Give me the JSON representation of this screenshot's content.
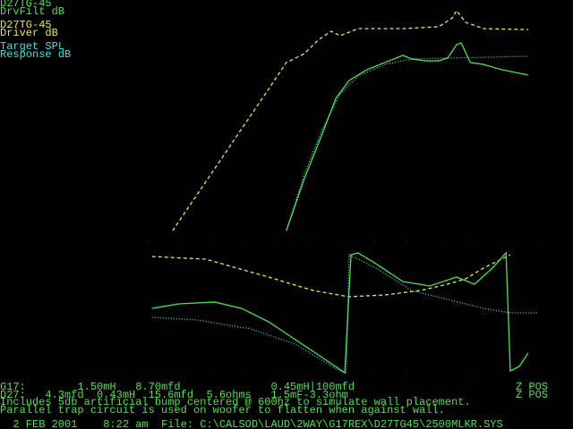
{
  "chart_data": [
    {
      "type": "line",
      "xlim": [
        0,
        100
      ],
      "ylim": [
        0,
        100
      ],
      "series": [
        {
          "name": "DrvFilt dB",
          "driver": "D27TG-45",
          "color": "#50e050",
          "style": "solid",
          "x": [
            35.6,
            40.2,
            44.8,
            48.3,
            51.7,
            56.3,
            60.9,
            65.5,
            67.8,
            71.3,
            74.7,
            77,
            79.3,
            80.5,
            82.8,
            86.2,
            90.8,
            97.7
          ],
          "values": [
            4.5,
            26.4,
            45.3,
            60.4,
            67.9,
            72.5,
            75.5,
            78.5,
            77,
            76.2,
            76.2,
            77.4,
            83,
            83.8,
            75.5,
            74.7,
            72.5,
            70.2
          ]
        },
        {
          "name": "Driver dB",
          "driver": "D27TG-45",
          "color": "#e8e850",
          "style": "dashed",
          "x": [
            6.4,
            31,
            35.6,
            40.2,
            43.7,
            47.1,
            49.4,
            54,
            65.5,
            74.7,
            78.2,
            79.3,
            81.6,
            86.2,
            97.7
          ],
          "values": [
            4.5,
            64.2,
            75.5,
            79.2,
            84.9,
            88.7,
            86.8,
            89.8,
            89.8,
            90.6,
            94.3,
            97.4,
            92.5,
            89.8,
            89.4
          ]
        },
        {
          "name": "Response dB",
          "driver": "Target SPL",
          "color": "#40e0e0",
          "style": "dotted",
          "x": [
            35.6,
            40.2,
            44.8,
            49.4,
            54,
            60.9,
            67.8,
            77,
            97.7
          ],
          "values": [
            4.5,
            28.3,
            47.2,
            62.3,
            69.8,
            74.7,
            77,
            77.4,
            78.1
          ]
        }
      ]
    },
    {
      "type": "line",
      "xlim": [
        0,
        100
      ],
      "ylim": [
        0,
        100
      ],
      "series": [
        {
          "color": "#e8e850",
          "style": "dashed",
          "x": [
            1.1,
            14.9,
            31,
            42.5,
            51.7,
            60.9,
            70.1,
            77,
            81.6,
            86.2,
            90.8,
            93.1
          ],
          "values": [
            97.1,
            94.9,
            80.3,
            69.3,
            64.2,
            65.7,
            69.3,
            74.5,
            78.8,
            87.6,
            94.9,
            98.5
          ]
        },
        {
          "color": "#50e050",
          "style": "solid",
          "x": [
            1.1,
            8,
            17.2,
            24.1,
            31,
            37.9,
            44.8,
            50.6,
            52.2,
            54,
            58.6,
            65.5,
            72.4,
            79.3,
            83.9,
            88.5,
            92,
            93.1,
            95.4,
            97.7
          ],
          "values": [
            54.7,
            58.4,
            59.9,
            54.7,
            43.8,
            29.2,
            14.6,
            2.2,
            98.5,
            100,
            91.2,
            76.6,
            73,
            80.3,
            74.5,
            87.6,
            100,
            3.6,
            7.3,
            18.2
          ]
        },
        {
          "color": "#40e0e0",
          "style": "dotted",
          "x": [
            1.1,
            12.6,
            26.4,
            37.9,
            49.4,
            51,
            51.7,
            58.6,
            67.8,
            77,
            86.2,
            93.1,
            100
          ],
          "values": [
            47.4,
            45.3,
            38,
            25.5,
            3.6,
            1.5,
            98.5,
            87.6,
            69.3,
            62,
            54.7,
            51.1,
            51.1
          ]
        }
      ]
    }
  ],
  "footer": {
    "lines": [
      "G17:        1.50mH   8.70mfd              0.45mH|100mfd",
      "D27:   4.3mfd  0.43mH  15.6mfd  5.6ohms   1.5mF-3.3ohm",
      "Includes 5db artificial bump centered @ 600hz to simulate wall placement.",
      "Parallel trap circuit is used on woofer to flatten when against wall."
    ],
    "flags": [
      "Z POS",
      "Z POS"
    ],
    "status": "  2 FEB 2001    8:22 am  File: C:\\CALSOD\\LAUD\\2WAY\\G17REX\\D27TG45\\2500MLKR.SYS"
  }
}
